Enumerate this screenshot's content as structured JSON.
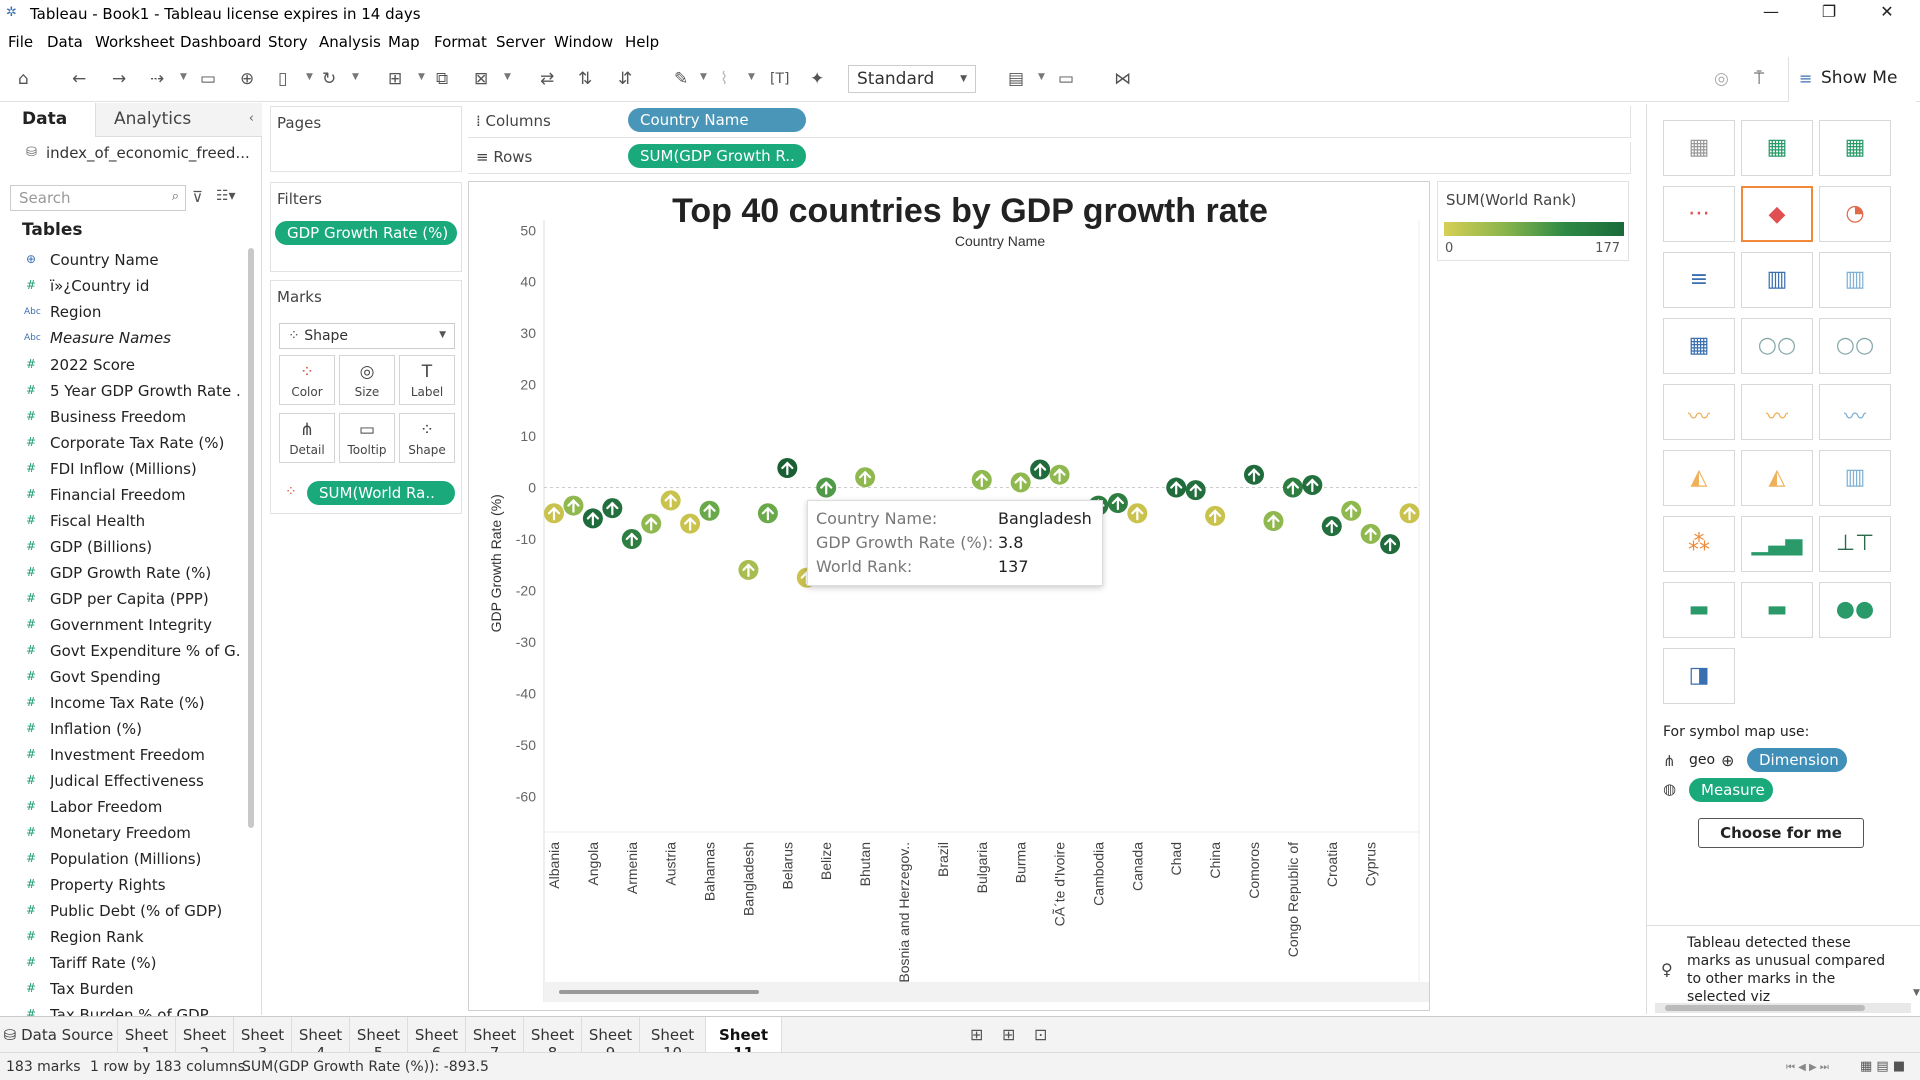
{
  "window": {
    "title": "Tableau - Book1 - Tableau license expires in 14 days"
  },
  "menu": [
    "File",
    "Data",
    "Worksheet",
    "Dashboard",
    "Story",
    "Analysis",
    "Map",
    "Format",
    "Server",
    "Window",
    "Help"
  ],
  "toolbar": {
    "view_mode": "Standard",
    "show_me_label": "Show Me"
  },
  "left_panel": {
    "tabs": [
      "Data",
      "Analytics"
    ],
    "data_source": "index_of_economic_freed...",
    "search_placeholder": "Search",
    "tables_heading": "Tables",
    "fields": [
      {
        "icon": "globe",
        "name": "Country Name"
      },
      {
        "icon": "hash",
        "name": "ï»¿Country id"
      },
      {
        "icon": "abc",
        "name": "Region"
      },
      {
        "icon": "abc",
        "name": "Measure Names"
      },
      {
        "icon": "hash",
        "name": "2022 Score"
      },
      {
        "icon": "hash",
        "name": "5 Year GDP Growth Rate ..."
      },
      {
        "icon": "hash",
        "name": "Business Freedom"
      },
      {
        "icon": "hash",
        "name": "Corporate Tax Rate (%)"
      },
      {
        "icon": "hash",
        "name": "FDI Inflow (Millions)"
      },
      {
        "icon": "hash",
        "name": "Financial Freedom"
      },
      {
        "icon": "hash",
        "name": "Fiscal Health"
      },
      {
        "icon": "hash",
        "name": "GDP (Billions)"
      },
      {
        "icon": "hash",
        "name": "GDP Growth Rate (%)"
      },
      {
        "icon": "hash",
        "name": "GDP per Capita (PPP)"
      },
      {
        "icon": "hash",
        "name": "Government Integrity"
      },
      {
        "icon": "hash",
        "name": "Govt Expenditure % of G..."
      },
      {
        "icon": "hash",
        "name": "Govt Spending"
      },
      {
        "icon": "hash",
        "name": "Income Tax Rate (%)"
      },
      {
        "icon": "hash",
        "name": "Inflation (%)"
      },
      {
        "icon": "hash",
        "name": "Investment Freedom"
      },
      {
        "icon": "hash",
        "name": "Judical Effectiveness"
      },
      {
        "icon": "hash",
        "name": "Labor Freedom"
      },
      {
        "icon": "hash",
        "name": "Monetary Freedom"
      },
      {
        "icon": "hash",
        "name": "Population (Millions)"
      },
      {
        "icon": "hash",
        "name": "Property Rights"
      },
      {
        "icon": "hash",
        "name": "Public Debt (% of GDP)"
      },
      {
        "icon": "hash",
        "name": "Region Rank"
      },
      {
        "icon": "hash",
        "name": "Tariff Rate (%)"
      },
      {
        "icon": "hash",
        "name": "Tax Burden"
      },
      {
        "icon": "hash",
        "name": "Tax Burden % of GDP"
      }
    ]
  },
  "shelves": {
    "pages": "Pages",
    "filters": "Filters",
    "filter_pill": "GDP Growth Rate (%)",
    "marks": "Marks",
    "mark_type": "Shape",
    "mark_buttons": [
      "Color",
      "Size",
      "Label",
      "Detail",
      "Tooltip",
      "Shape"
    ],
    "marks_pill": "SUM(World Ra..",
    "columns_label": "Columns",
    "columns_pill": "Country Name",
    "rows_label": "Rows",
    "rows_pill": "SUM(GDP Growth R.."
  },
  "legend": {
    "title": "SUM(World Rank)",
    "min": "0",
    "max": "177"
  },
  "tooltip": {
    "rows": [
      {
        "key": "Country Name:",
        "value": "Bangladesh"
      },
      {
        "key": "GDP Growth Rate (%):",
        "value": "3.8"
      },
      {
        "key": "World Rank:",
        "value": "137"
      }
    ]
  },
  "chart_data": {
    "type": "scatter",
    "title": "Top 40 countries by GDP growth rate",
    "xlabel": "Country Name",
    "ylabel": "GDP Growth Rate (%)",
    "ylim": [
      -65,
      52
    ],
    "yticks": [
      50,
      40,
      30,
      20,
      10,
      0,
      -10,
      -20,
      -30,
      -40,
      -50,
      -60
    ],
    "categories": [
      "Albania",
      "Angola",
      "Armenia",
      "Austria",
      "Bahamas",
      "Bangladesh",
      "Belarus",
      "Belize",
      "Bhutan",
      "Bosnia and Herzegov..",
      "Brazil",
      "Bulgaria",
      "Burma",
      "CÃ´te d'Ivoire",
      "Cambodia",
      "Canada",
      "Chad",
      "China",
      "Comoros",
      "Congo Republic of",
      "Croatia",
      "Cyprus"
    ],
    "points": [
      {
        "x": 0.0,
        "y": -5,
        "c": "#c9c24d"
      },
      {
        "x": 0.5,
        "y": -3.5,
        "c": "#8fb84e"
      },
      {
        "x": 1.0,
        "y": -6,
        "c": "#1f6b3b"
      },
      {
        "x": 1.5,
        "y": -4,
        "c": "#246f3e"
      },
      {
        "x": 2.0,
        "y": -10,
        "c": "#2e7e42"
      },
      {
        "x": 2.5,
        "y": -7,
        "c": "#8fb84e"
      },
      {
        "x": 3.0,
        "y": -2.5,
        "c": "#c9c24d"
      },
      {
        "x": 3.5,
        "y": -7,
        "c": "#c9c24d"
      },
      {
        "x": 4.0,
        "y": -4.5,
        "c": "#6aa94a"
      },
      {
        "x": 5.0,
        "y": -16,
        "c": "#a8bd4f"
      },
      {
        "x": 5.5,
        "y": -5,
        "c": "#6aa94a"
      },
      {
        "x": 6.0,
        "y": 3.8,
        "c": "#1a5e33"
      },
      {
        "x": 6.5,
        "y": -17.5,
        "c": "#c9c24d"
      },
      {
        "x": 7.0,
        "y": 0,
        "c": "#4f9a47"
      },
      {
        "x": 8.0,
        "y": 2,
        "c": "#8fb84e"
      },
      {
        "x": 11.0,
        "y": 1.5,
        "c": "#8fb84e"
      },
      {
        "x": 12.0,
        "y": 1,
        "c": "#8fb84e"
      },
      {
        "x": 12.5,
        "y": 3.5,
        "c": "#1f6b3b"
      },
      {
        "x": 13.0,
        "y": 2.5,
        "c": "#8fb84e"
      },
      {
        "x": 13.5,
        "y": -14,
        "c": "#8fb84e"
      },
      {
        "x": 14.0,
        "y": -3.5,
        "c": "#2e7e42"
      },
      {
        "x": 14.5,
        "y": -3,
        "c": "#2e7e42"
      },
      {
        "x": 15.0,
        "y": -5,
        "c": "#c9c24d"
      },
      {
        "x": 16.0,
        "y": 0,
        "c": "#1f6b3b"
      },
      {
        "x": 16.5,
        "y": -0.5,
        "c": "#246f3e"
      },
      {
        "x": 17.0,
        "y": -5.5,
        "c": "#c9c24d"
      },
      {
        "x": 18.0,
        "y": 2.5,
        "c": "#1f6b3b"
      },
      {
        "x": 18.5,
        "y": -6.5,
        "c": "#8fb84e"
      },
      {
        "x": 19.0,
        "y": 0,
        "c": "#2e7e42"
      },
      {
        "x": 19.5,
        "y": 0.5,
        "c": "#246f3e"
      },
      {
        "x": 20.0,
        "y": -7.5,
        "c": "#246f3e"
      },
      {
        "x": 20.5,
        "y": -4.5,
        "c": "#8fb84e"
      },
      {
        "x": 21.0,
        "y": -9,
        "c": "#8fb84e"
      },
      {
        "x": 21.5,
        "y": -11,
        "c": "#1f6b3b"
      },
      {
        "x": 22.0,
        "y": -5,
        "c": "#c9c24d"
      }
    ]
  },
  "show_me": {
    "footer_heading": "For symbol map use:",
    "geo_label": "geo",
    "dimension": "Dimension",
    "measure": "Measure",
    "choose_button": "Choose for me",
    "detected_msg": "Tableau detected these marks as unusual compared to other marks in the selected viz"
  },
  "sheet_tabs": [
    "Data Source",
    "Sheet 1",
    "Sheet 2",
    "Sheet 3",
    "Sheet 4",
    "Sheet 5",
    "Sheet 6",
    "Sheet 7",
    "Sheet 8",
    "Sheet 9",
    "Sheet 10",
    "Sheet 11"
  ],
  "active_sheet": "Sheet 11",
  "status": {
    "marks": "183 marks",
    "dims": "1 row by 183 columns",
    "sum": "SUM(GDP Growth Rate (%)): -893.5"
  }
}
